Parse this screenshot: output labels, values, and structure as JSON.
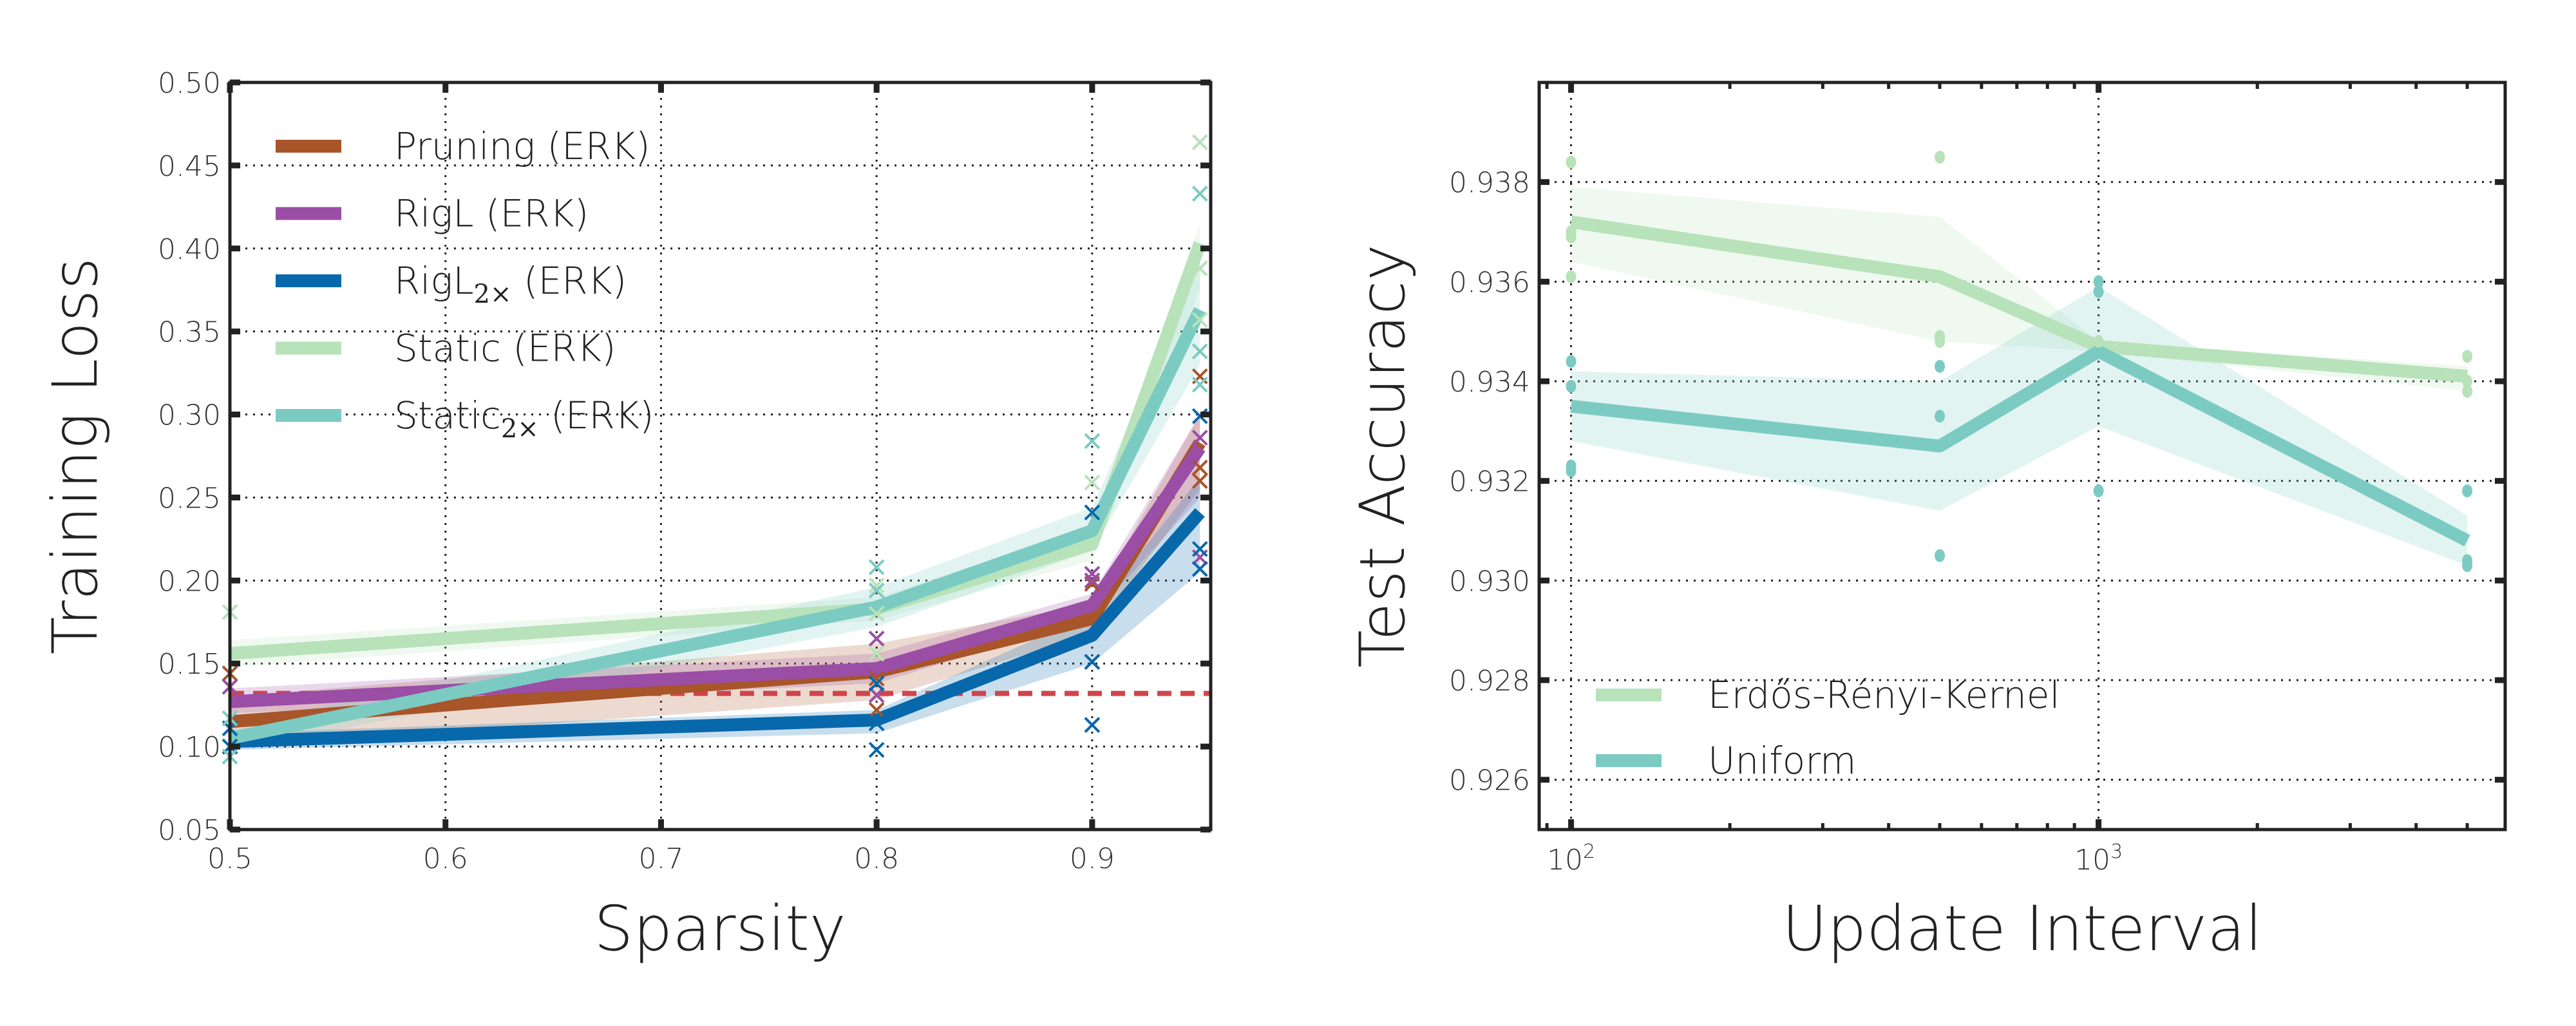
{
  "chart_data": [
    {
      "type": "line",
      "xlabel": "Sparsity",
      "ylabel": "Training Loss",
      "xlim": [
        0.5,
        0.955
      ],
      "ylim": [
        0.05,
        0.5
      ],
      "xscale": "linear",
      "grid": true,
      "legend_position": "top-left",
      "xticks": [
        "0.5",
        "0.6",
        "0.7",
        "0.8",
        "0.9"
      ],
      "xtick_values": [
        0.5,
        0.6,
        0.7,
        0.8,
        0.9
      ],
      "yticks": [
        "0.05",
        "0.10",
        "0.15",
        "0.20",
        "0.25",
        "0.30",
        "0.35",
        "0.40",
        "0.45",
        "0.50"
      ],
      "ytick_values": [
        0.05,
        0.1,
        0.15,
        0.2,
        0.25,
        0.3,
        0.35,
        0.4,
        0.45,
        0.5
      ],
      "x": [
        0.5,
        0.8,
        0.9,
        0.95
      ],
      "reference_line": {
        "y": 0.132,
        "color": "#d0454c",
        "style": "dashed"
      },
      "series": [
        {
          "name": "Pruning (ERK)",
          "label_main": "Pruning (ERK)",
          "label_sub": "",
          "label_suffix": "",
          "color": "#a8552a",
          "values": [
            0.115,
            0.145,
            0.177,
            0.283
          ],
          "lower": [
            0.1,
            0.128,
            0.168,
            0.255
          ],
          "upper": [
            0.13,
            0.162,
            0.186,
            0.3
          ],
          "points": [
            [
              0.5,
              0.144
            ],
            [
              0.5,
              0.1
            ],
            [
              0.8,
              0.141
            ],
            [
              0.8,
              0.122
            ],
            [
              0.9,
              0.198
            ],
            [
              0.9,
              0.151
            ],
            [
              0.95,
              0.323
            ],
            [
              0.95,
              0.268
            ],
            [
              0.95,
              0.26
            ]
          ]
        },
        {
          "name": "RigL (ERK)",
          "label_main": "RigL (ERK)",
          "label_sub": "",
          "label_suffix": "",
          "color": "#9b4ea6",
          "values": [
            0.127,
            0.147,
            0.185,
            0.28
          ],
          "lower": [
            0.12,
            0.138,
            0.178,
            0.25
          ],
          "upper": [
            0.135,
            0.156,
            0.192,
            0.3
          ],
          "points": [
            [
              0.5,
              0.136
            ],
            [
              0.8,
              0.165
            ],
            [
              0.8,
              0.131
            ],
            [
              0.9,
              0.204
            ],
            [
              0.9,
              0.2
            ],
            [
              0.95,
              0.286
            ],
            [
              0.95,
              0.214
            ]
          ]
        },
        {
          "name": "RigL2× (ERK)",
          "label_main": "RigL",
          "label_sub": "2×",
          "label_suffix": "  (ERK)",
          "color": "#0868ac",
          "values": [
            0.103,
            0.116,
            0.167,
            0.241
          ],
          "lower": [
            0.098,
            0.108,
            0.15,
            0.205
          ],
          "upper": [
            0.108,
            0.122,
            0.18,
            0.262
          ],
          "points": [
            [
              0.5,
              0.111
            ],
            [
              0.5,
              0.1
            ],
            [
              0.8,
              0.138
            ],
            [
              0.8,
              0.114
            ],
            [
              0.8,
              0.098
            ],
            [
              0.9,
              0.241
            ],
            [
              0.9,
              0.151
            ],
            [
              0.9,
              0.113
            ],
            [
              0.95,
              0.299
            ],
            [
              0.95,
              0.219
            ],
            [
              0.95,
              0.207
            ]
          ]
        },
        {
          "name": "Static (ERK)",
          "label_main": "Static (ERK)",
          "label_sub": "",
          "label_suffix": "",
          "color": "#b8e2b9",
          "values": [
            0.156,
            0.183,
            0.222,
            0.403
          ],
          "lower": [
            0.148,
            0.176,
            0.212,
            0.375
          ],
          "upper": [
            0.164,
            0.19,
            0.232,
            0.415
          ],
          "points": [
            [
              0.5,
              0.181
            ],
            [
              0.8,
              0.197
            ],
            [
              0.8,
              0.18
            ],
            [
              0.8,
              0.156
            ],
            [
              0.9,
              0.259
            ],
            [
              0.95,
              0.464
            ],
            [
              0.95,
              0.388
            ],
            [
              0.95,
              0.357
            ]
          ]
        },
        {
          "name": "Static2× (ERK)",
          "label_main": "Static",
          "label_sub": "2×",
          "label_suffix": "  (ERK)",
          "color": "#7ccbc3",
          "values": [
            0.105,
            0.184,
            0.23,
            0.363
          ],
          "lower": [
            0.098,
            0.172,
            0.218,
            0.33
          ],
          "upper": [
            0.112,
            0.196,
            0.244,
            0.392
          ],
          "points": [
            [
              0.5,
              0.117
            ],
            [
              0.5,
              0.094
            ],
            [
              0.8,
              0.208
            ],
            [
              0.8,
              0.194
            ],
            [
              0.9,
              0.284
            ],
            [
              0.95,
              0.433
            ],
            [
              0.95,
              0.338
            ],
            [
              0.95,
              0.318
            ]
          ]
        }
      ]
    },
    {
      "type": "line",
      "xlabel": "Update Interval",
      "ylabel": "Test Accuracy",
      "xlim": [
        87,
        5900
      ],
      "ylim": [
        0.925,
        0.94
      ],
      "xscale": "log",
      "grid": true,
      "legend_position": "bottom-left",
      "xticks": [
        {
          "base": "10",
          "exp": "2"
        },
        {
          "base": "10",
          "exp": "3"
        }
      ],
      "xtick_values": [
        100,
        1000
      ],
      "yticks": [
        "0.926",
        "0.928",
        "0.930",
        "0.932",
        "0.934",
        "0.936",
        "0.938"
      ],
      "ytick_values": [
        0.926,
        0.928,
        0.93,
        0.932,
        0.934,
        0.936,
        0.938
      ],
      "x": [
        100,
        500,
        1000,
        5000
      ],
      "series": [
        {
          "name": "Erdős-Rényi-Kernel",
          "color": "#b8e2b9",
          "values": [
            0.9372,
            0.9361,
            0.9347,
            0.9341
          ],
          "lower": [
            0.9364,
            0.9348,
            0.9346,
            0.9338
          ],
          "upper": [
            0.9379,
            0.9373,
            0.9348,
            0.9343
          ],
          "points": [
            [
              100,
              0.9384
            ],
            [
              100,
              0.937
            ],
            [
              100,
              0.9369
            ],
            [
              100,
              0.9361
            ],
            [
              500,
              0.9385
            ],
            [
              500,
              0.9349
            ],
            [
              500,
              0.9348
            ],
            [
              1000,
              0.9348
            ],
            [
              5000,
              0.9345
            ],
            [
              5000,
              0.934
            ],
            [
              5000,
              0.9338
            ]
          ]
        },
        {
          "name": "Uniform",
          "color": "#7ccbc3",
          "values": [
            0.9335,
            0.9327,
            0.9346,
            0.9308
          ],
          "lower": [
            0.9328,
            0.9314,
            0.9331,
            0.9303
          ],
          "upper": [
            0.9342,
            0.934,
            0.9359,
            0.9313
          ],
          "points": [
            [
              100,
              0.9344
            ],
            [
              100,
              0.9339
            ],
            [
              100,
              0.9323
            ],
            [
              100,
              0.9322
            ],
            [
              500,
              0.9343
            ],
            [
              500,
              0.9333
            ],
            [
              500,
              0.9305
            ],
            [
              1000,
              0.936
            ],
            [
              1000,
              0.9358
            ],
            [
              1000,
              0.9318
            ],
            [
              5000,
              0.9318
            ],
            [
              5000,
              0.9304
            ],
            [
              5000,
              0.9303
            ]
          ]
        }
      ]
    }
  ]
}
